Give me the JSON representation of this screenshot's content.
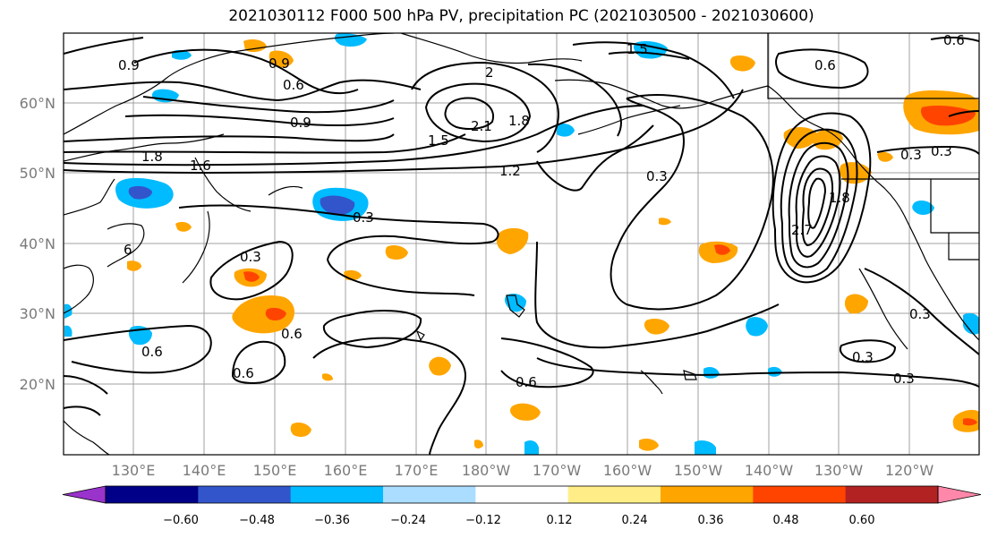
{
  "title": "2021030112 F000 500 hPa PV, precipitation PC (2021030500 - 2021030600)",
  "axes": {
    "lat_labels": [
      "60°N",
      "50°N",
      "40°N",
      "30°N",
      "20°N"
    ],
    "lon_labels": [
      "130°E",
      "140°E",
      "150°E",
      "160°E",
      "170°E",
      "180°W",
      "170°W",
      "160°W",
      "150°W",
      "140°W",
      "130°W",
      "120°W"
    ]
  },
  "colorbar": {
    "tick_labels": [
      "−0.60",
      "−0.48",
      "−0.36",
      "−0.24",
      "−0.12",
      "0.12",
      "0.24",
      "0.36",
      "0.48",
      "0.60"
    ],
    "colors": [
      "#9933cc",
      "#000088",
      "#3355cc",
      "#00bbff",
      "#aaddff",
      "#ffffff",
      "#ffee88",
      "#ffa500",
      "#ff4400",
      "#b22222",
      "#ff88aa"
    ]
  },
  "contour_labels": [
    "0.9",
    "0.6",
    "0.9",
    "1.5",
    "2",
    "2.1",
    "1.8",
    "1.5",
    "1.8",
    "1.6",
    "0.9",
    "1.2",
    "0.3",
    "0.3",
    "0.3",
    "0.6",
    "0.6",
    "0.6",
    "0.6",
    "0.3",
    "0.3",
    "0.3",
    "0.3",
    "0.3",
    "0.6",
    "0.6",
    "1.8",
    "2.7"
  ],
  "colors": {
    "contour": "#000000",
    "grid": "#a0a0a0",
    "coast": "#000000"
  }
}
